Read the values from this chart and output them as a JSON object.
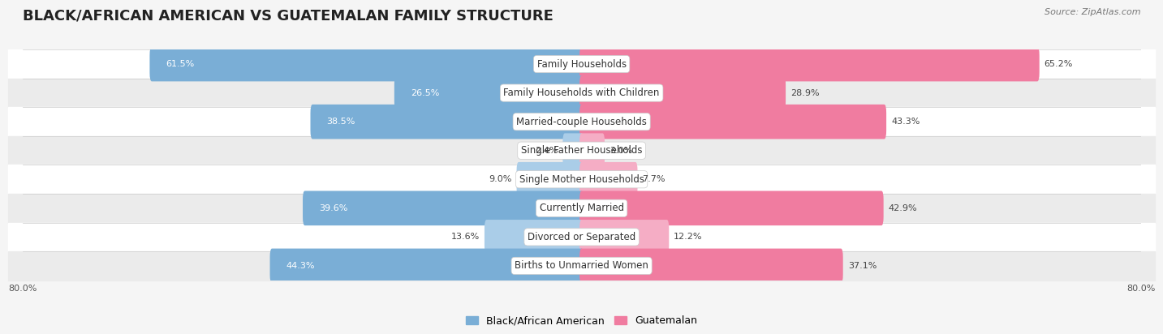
{
  "title": "BLACK/AFRICAN AMERICAN VS GUATEMALAN FAMILY STRUCTURE",
  "source": "Source: ZipAtlas.com",
  "categories": [
    "Family Households",
    "Family Households with Children",
    "Married-couple Households",
    "Single Father Households",
    "Single Mother Households",
    "Currently Married",
    "Divorced or Separated",
    "Births to Unmarried Women"
  ],
  "black_values": [
    61.5,
    26.5,
    38.5,
    2.4,
    9.0,
    39.6,
    13.6,
    44.3
  ],
  "guatemalan_values": [
    65.2,
    28.9,
    43.3,
    3.0,
    7.7,
    42.9,
    12.2,
    37.1
  ],
  "black_color": "#7aaed6",
  "black_color_light": "#aacde8",
  "guatemalan_color": "#f07ca0",
  "guatemalan_color_light": "#f5adc5",
  "black_label": "Black/African American",
  "guatemalan_label": "Guatemalan",
  "axis_max": 80.0,
  "x_tick_label_left": "80.0%",
  "x_tick_label_right": "80.0%",
  "background_color": "#f5f5f5",
  "row_colors": [
    "#ffffff",
    "#ebebeb"
  ],
  "title_fontsize": 13,
  "label_fontsize": 8.5,
  "value_fontsize": 8,
  "legend_fontsize": 9,
  "source_fontsize": 8
}
